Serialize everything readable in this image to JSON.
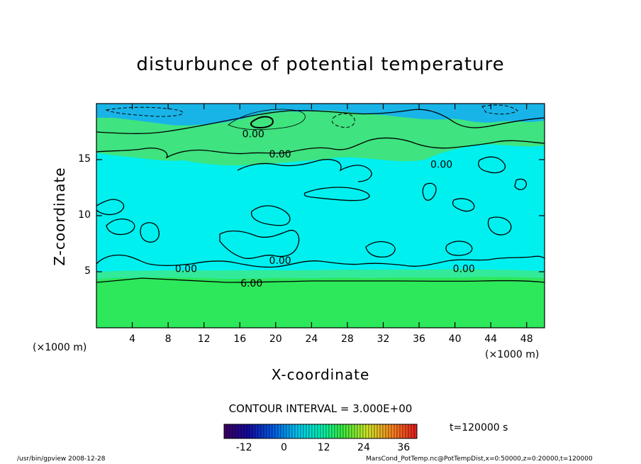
{
  "chart_data": {
    "type": "heatmap",
    "title": "disturbunce of potential temperature",
    "xlabel": "X-coordinate",
    "ylabel": "Z-coordinate",
    "x_unit": "(×1000 m)",
    "y_unit": "(×1000 m)",
    "xlim": [
      0,
      50
    ],
    "ylim": [
      0,
      20
    ],
    "x_ticks": [
      4,
      8,
      12,
      16,
      20,
      24,
      28,
      32,
      36,
      40,
      44,
      48
    ],
    "y_ticks": [
      5,
      10,
      15
    ],
    "contour_labels": [
      {
        "text": "0.00",
        "x": 17.5,
        "z": 17.3
      },
      {
        "text": "0.00",
        "x": 20.5,
        "z": 15.5
      },
      {
        "text": "0.00",
        "x": 38.5,
        "z": 14.6
      },
      {
        "text": "0.00",
        "x": 20.5,
        "z": 6.0
      },
      {
        "text": "0.00",
        "x": 10.0,
        "z": 5.3
      },
      {
        "text": "0.00",
        "x": 41.0,
        "z": 5.3
      },
      {
        "text": "6.00",
        "x": 17.3,
        "z": 4.0
      }
    ],
    "contour_interval": "CONTOUR INTERVAL = 3.000E+00",
    "colorbar": {
      "range": [
        -18,
        40
      ],
      "tick_labels": [
        "-12",
        "0",
        "12",
        "24",
        "36"
      ],
      "tick_values": [
        -12,
        0,
        12,
        24,
        36
      ]
    },
    "time": "t=120000 s"
  },
  "footer": {
    "left": "/usr/bin/gpview  2008-12-28",
    "right": "MarsCond_PotTemp.nc@PotTempDist,x=0:50000,z=0:20000,t=120000"
  },
  "colors": {
    "lower_layer": "#2de85a",
    "middle_layer": "#00f0f0",
    "upper_layer": "#3fe37f",
    "top_blue": "#18b4e8",
    "contour": "#000000"
  }
}
